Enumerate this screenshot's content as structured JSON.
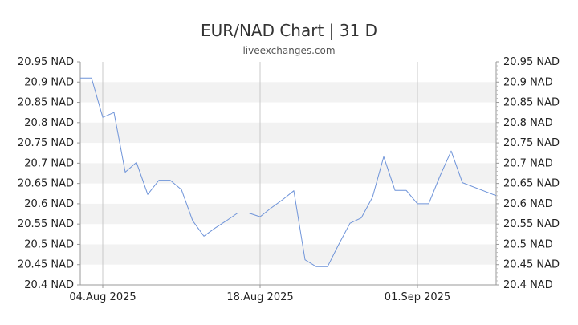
{
  "header": {
    "title": "EUR/NAD Chart | 31 D",
    "subtitle": "liveexchanges.com"
  },
  "chart_data": {
    "type": "line",
    "title": "EUR/NAD Chart | 31 D",
    "subtitle": "liveexchanges.com",
    "xlabel": "",
    "ylabel": "",
    "ylim": [
      20.4,
      20.95
    ],
    "y_ticks": [
      20.4,
      20.45,
      20.5,
      20.55,
      20.6,
      20.65,
      20.7,
      20.75,
      20.8,
      20.85,
      20.9,
      20.95
    ],
    "y_tick_labels": [
      "20.4 NAD",
      "20.45 NAD",
      "20.5 NAD",
      "20.55 NAD",
      "20.6 NAD",
      "20.65 NAD",
      "20.7 NAD",
      "20.75 NAD",
      "20.8 NAD",
      "20.85 NAD",
      "20.9 NAD",
      "20.95 NAD"
    ],
    "x_tick_labels": [
      {
        "date": "2025-08-04",
        "label": "04.Aug 2025"
      },
      {
        "date": "2025-08-18",
        "label": "18.Aug 2025"
      },
      {
        "date": "2025-09-01",
        "label": "01.Sep 2025"
      }
    ],
    "xlim": [
      "2025-08-02",
      "2025-09-08"
    ],
    "grid": "horizontal bands, vertical lines at x ticks",
    "line_color": "#6f94d9",
    "series": [
      {
        "x": [
          "2025-08-02",
          "2025-08-03",
          "2025-08-04",
          "2025-08-05",
          "2025-08-06",
          "2025-08-07",
          "2025-08-08",
          "2025-08-09",
          "2025-08-10",
          "2025-08-11",
          "2025-08-12",
          "2025-08-13",
          "2025-08-14",
          "2025-08-15",
          "2025-08-16",
          "2025-08-17",
          "2025-08-18",
          "2025-08-19",
          "2025-08-20",
          "2025-08-21",
          "2025-08-22",
          "2025-08-23",
          "2025-08-24",
          "2025-08-25",
          "2025-08-26",
          "2025-08-27",
          "2025-08-28",
          "2025-08-29",
          "2025-08-30",
          "2025-08-31",
          "2025-09-01",
          "2025-09-02",
          "2025-09-03",
          "2025-09-04",
          "2025-09-05",
          "2025-09-08"
        ],
        "values": [
          20.91,
          20.91,
          20.813,
          20.825,
          20.678,
          20.702,
          20.623,
          20.658,
          20.658,
          20.635,
          20.558,
          20.52,
          20.54,
          20.558,
          20.577,
          20.577,
          20.568,
          20.59,
          20.61,
          20.632,
          20.462,
          20.445,
          20.445,
          20.5,
          20.552,
          20.565,
          20.616,
          20.716,
          20.633,
          20.633,
          20.6,
          20.6,
          20.668,
          20.73,
          20.652,
          20.62
        ]
      }
    ]
  }
}
